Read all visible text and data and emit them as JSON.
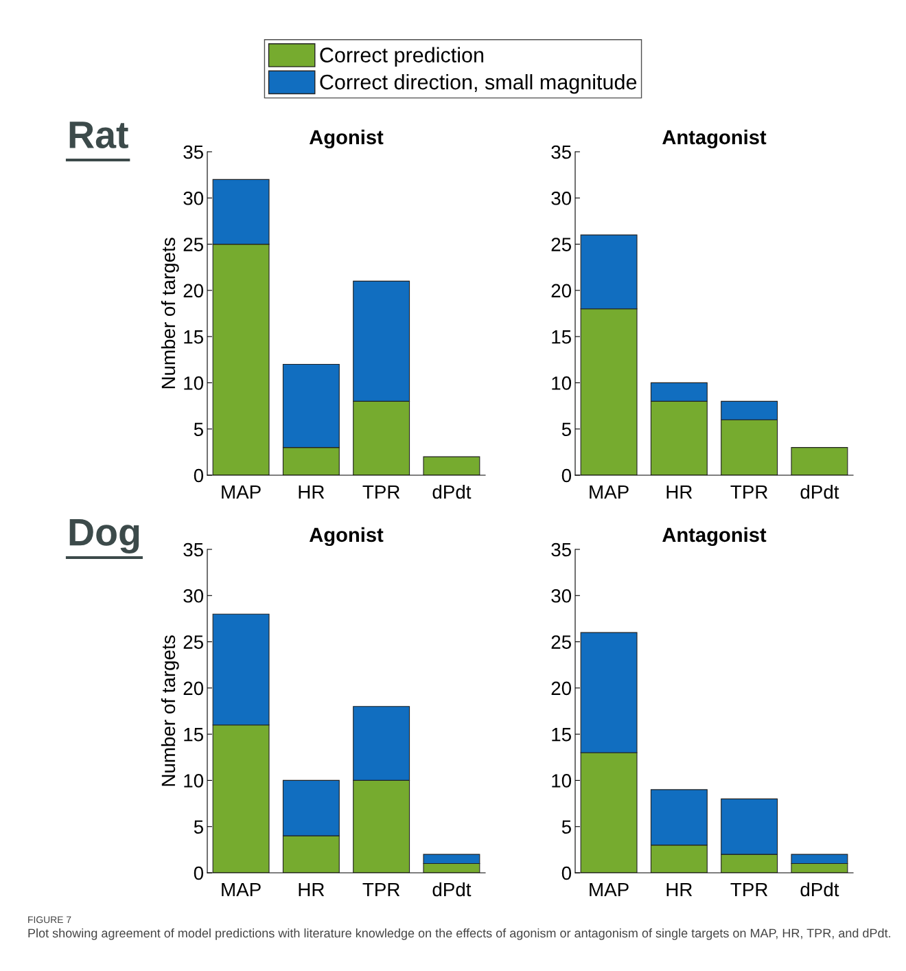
{
  "chart_data": [
    {
      "type": "bar",
      "stacked": true,
      "title": "Agonist",
      "ylabel": "Number of targets",
      "categories": [
        "MAP",
        "HR",
        "TPR",
        "dPdt"
      ],
      "ylim": [
        0,
        35
      ],
      "yticks": [
        0,
        5,
        10,
        15,
        20,
        25,
        30,
        35
      ],
      "grid": false,
      "legend": "top",
      "annotations": [
        "Rat"
      ],
      "series": [
        {
          "name": "Correct prediction",
          "color": "#76ab2f",
          "values": [
            25,
            3,
            8,
            2
          ]
        },
        {
          "name": "Correct direction, small magnitude",
          "color": "#116ec0",
          "values": [
            7,
            9,
            13,
            null
          ]
        }
      ]
    },
    {
      "type": "bar",
      "stacked": true,
      "title": "Antagonist",
      "categories": [
        "MAP",
        "HR",
        "TPR",
        "dPdt"
      ],
      "ylim": [
        0,
        35
      ],
      "yticks": [
        0,
        5,
        10,
        15,
        20,
        25,
        30,
        35
      ],
      "grid": false,
      "series": [
        {
          "color": "#76ab2f",
          "values": [
            18,
            8,
            6,
            3
          ]
        },
        {
          "color": "#116ec0",
          "values": [
            8,
            2,
            2,
            null
          ]
        }
      ]
    },
    {
      "type": "bar",
      "stacked": true,
      "title": "Agonist",
      "ylabel": "Number of targets",
      "categories": [
        "MAP",
        "HR",
        "TPR",
        "dPdt"
      ],
      "ylim": [
        0,
        35
      ],
      "yticks": [
        0,
        5,
        10,
        15,
        20,
        25,
        30,
        35
      ],
      "grid": false,
      "annotations": [
        "Dog"
      ],
      "series": [
        {
          "color": "#76ab2f",
          "values": [
            16,
            4,
            10,
            1
          ]
        },
        {
          "color": "#116ec0",
          "values": [
            12,
            6,
            8,
            1
          ]
        }
      ]
    },
    {
      "type": "bar",
      "stacked": true,
      "title": "Antagonist",
      "categories": [
        "MAP",
        "HR",
        "TPR",
        "dPdt"
      ],
      "ylim": [
        0,
        35
      ],
      "yticks": [
        0,
        5,
        10,
        15,
        20,
        25,
        30,
        35
      ],
      "grid": false,
      "annotations": [
        "FIGURE 7",
        "Plot showing agreement of model predictions with literature knowledge on the effects of agonism or antagonism of single targets on MAP, HR, TPR, and dPdt."
      ],
      "series": [
        {
          "color": "#76ab2f",
          "values": [
            13,
            3,
            2,
            1
          ]
        },
        {
          "color": "#116ec0",
          "values": [
            13,
            6,
            6,
            1
          ]
        }
      ]
    }
  ]
}
